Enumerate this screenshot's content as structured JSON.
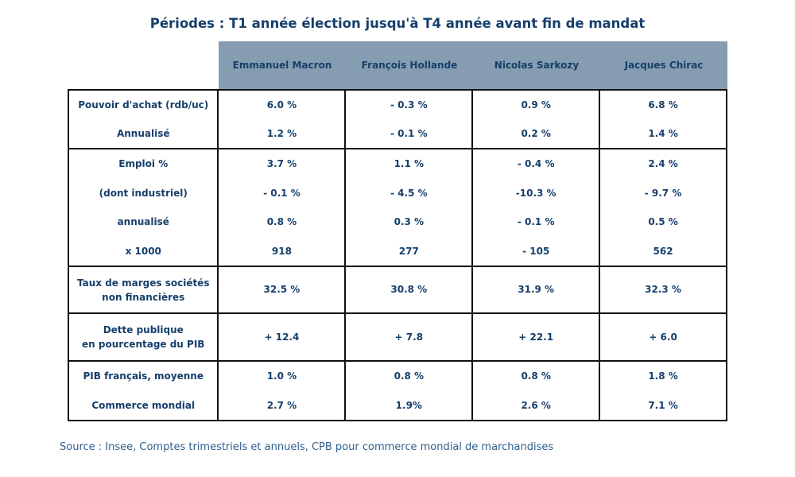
{
  "title": "Périodes : T1 année élection jusqu'à T4 année avant fin de mandat",
  "columns": [
    "Emmanuel Macron",
    "François Hollande",
    "Nicolas Sarkozy",
    "Jacques Chirac"
  ],
  "groups": [
    {
      "rows": [
        {
          "label": "Pouvoir d'achat (rdb/uc)",
          "values": [
            "6.0 %",
            "- 0.3 %",
            "0.9 %",
            "6.8 %"
          ]
        },
        {
          "label": "Annualisé",
          "values": [
            "1.2 %",
            "- 0.1 %",
            "0.2 %",
            "1.4 %"
          ]
        }
      ]
    },
    {
      "rows": [
        {
          "label": "Emploi %",
          "values": [
            "3.7 %",
            "1.1 %",
            "- 0.4 %",
            "2.4 %"
          ]
        },
        {
          "label": "(dont industriel)",
          "values": [
            "- 0.1 %",
            "- 4.5 %",
            "-10.3 %",
            "- 9.7 %"
          ]
        },
        {
          "label": "annualisé",
          "values": [
            "0.8 %",
            "0.3 %",
            "- 0.1 %",
            "0.5 %"
          ]
        },
        {
          "label": "x 1000",
          "values": [
            "918",
            "277",
            "- 105",
            "562"
          ]
        }
      ]
    },
    {
      "rows": [
        {
          "label_lines": [
            "Taux de marges sociétés",
            "non financières"
          ],
          "values": [
            "32.5 %",
            "30.8 %",
            "31.9 %",
            "32.3 %"
          ]
        }
      ]
    },
    {
      "rows": [
        {
          "label_lines": [
            "Dette publique",
            "en pourcentage du PIB"
          ],
          "values": [
            "+ 12.4",
            "+ 7.8",
            "+ 22.1",
            "+ 6.0"
          ]
        }
      ]
    },
    {
      "rows": [
        {
          "label": "PIB français, moyenne",
          "values": [
            "1.0 %",
            "0.8 %",
            "0.8 %",
            "1.8 %"
          ]
        },
        {
          "label": "Commerce mondial",
          "values": [
            "2.7 %",
            "1.9%",
            "2.6 %",
            "7.1 %"
          ]
        }
      ]
    }
  ],
  "source": "Source : Insee, Comptes trimestriels et annuels, CPB pour commerce mondial de marchandises"
}
